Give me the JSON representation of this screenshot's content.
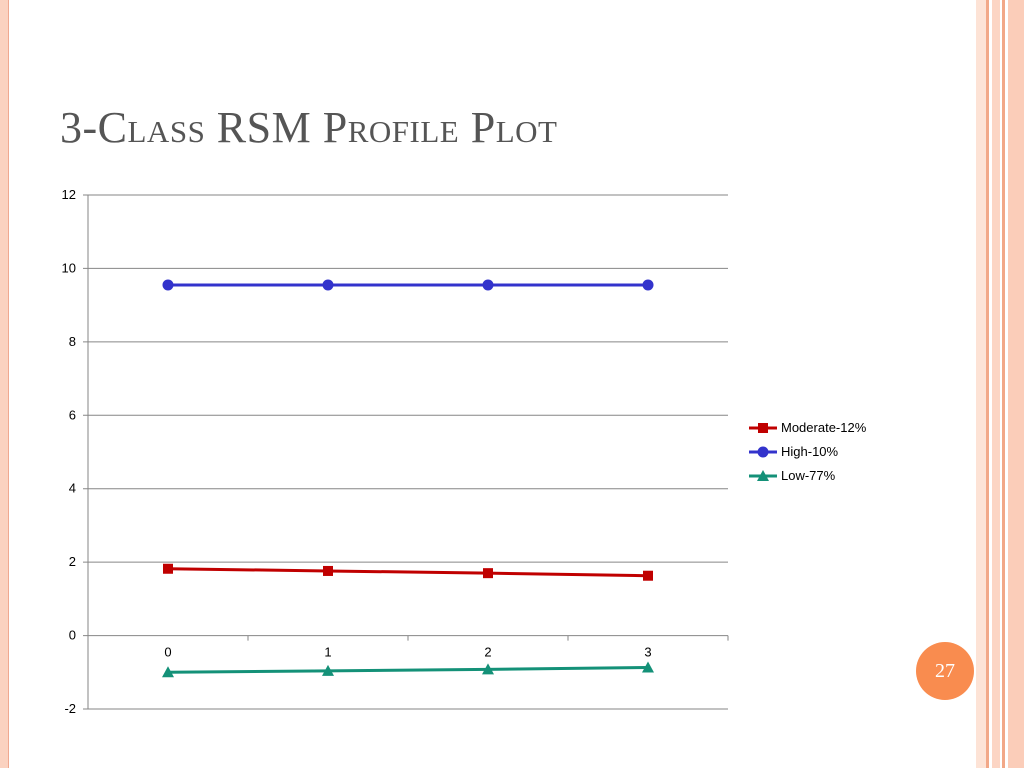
{
  "slide": {
    "title": "3-Class RSM Profile Plot",
    "page_number": "27"
  },
  "colors": {
    "left_border": "#fbd2c0",
    "stripe_light": "#fcd5c4",
    "stripe_dark": "#f2a888",
    "badge": "#f98c4f",
    "grid": "#868686"
  },
  "chart_data": {
    "type": "line",
    "x": [
      0,
      1,
      2,
      3
    ],
    "x_tick_labels": [
      "0",
      "1",
      "2",
      "3"
    ],
    "ylim": [
      -2,
      12
    ],
    "y_ticks": [
      -2,
      0,
      2,
      4,
      6,
      8,
      10,
      12
    ],
    "grid": true,
    "legend_position": "right",
    "series": [
      {
        "name": "Moderate-12%",
        "values": [
          1.82,
          1.76,
          1.7,
          1.63
        ],
        "color": "#c00000",
        "marker": "square"
      },
      {
        "name": "High-10%",
        "values": [
          9.55,
          9.55,
          9.55,
          9.55
        ],
        "color": "#3333cc",
        "marker": "circle"
      },
      {
        "name": "Low-77%",
        "values": [
          -1.0,
          -0.96,
          -0.92,
          -0.87
        ],
        "color": "#149178",
        "marker": "triangle"
      }
    ]
  }
}
